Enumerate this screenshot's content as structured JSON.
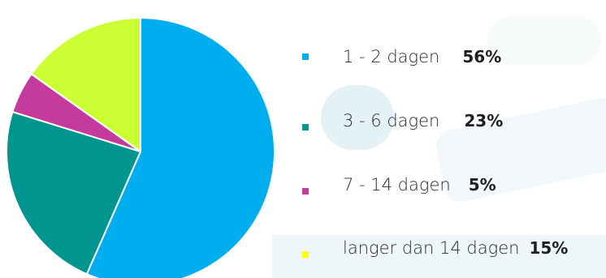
{
  "chart_data": {
    "type": "pie",
    "title": "",
    "categories": [
      "1 - 2 dagen",
      "3 - 6 dagen",
      "7 - 14 dagen",
      "langer dan 14 dagen"
    ],
    "values": [
      56,
      23,
      5,
      15
    ],
    "value_labels": [
      "56%",
      "23%",
      "5%",
      "15%"
    ],
    "colors": [
      "#00aeef",
      "#00968f",
      "#c53a9d",
      "#ccff33"
    ],
    "legend_position": "right"
  }
}
